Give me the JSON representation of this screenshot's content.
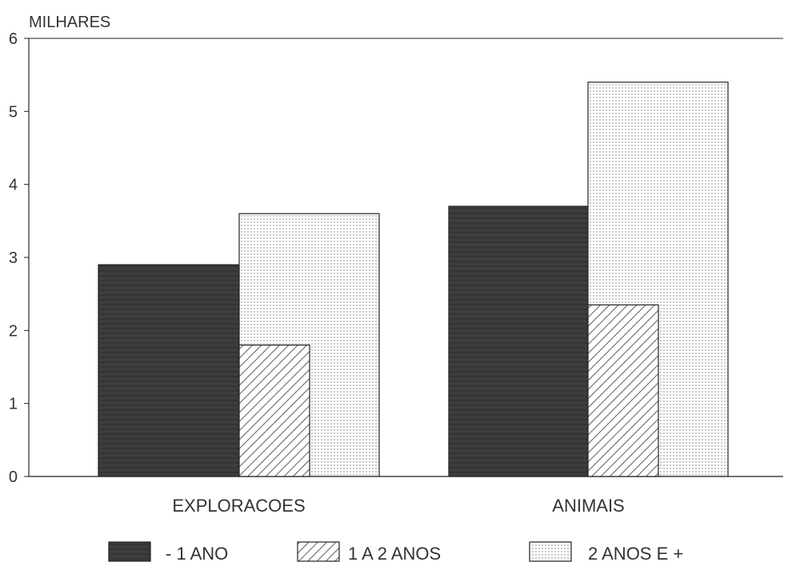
{
  "chart_data": {
    "type": "bar",
    "title": "",
    "ylabel": "MILHARES",
    "xlabel": "",
    "categories": [
      "EXPLORACOES",
      "ANIMAIS"
    ],
    "series": [
      {
        "name": "- 1 ANO",
        "values": [
          2.9,
          3.7
        ],
        "fill": "dark"
      },
      {
        "name": "1 A 2 ANOS",
        "values": [
          1.8,
          2.35
        ],
        "fill": "hatch"
      },
      {
        "name": "2 ANOS E +",
        "values": [
          3.6,
          5.4
        ],
        "fill": "dots"
      }
    ],
    "ylim": [
      0,
      6
    ],
    "yticks": [
      "0",
      "1",
      "2",
      "3",
      "4",
      "5",
      "6"
    ],
    "grid": false,
    "legend_position": "bottom",
    "colors": {
      "dark": "#3d3d3d",
      "line": "#222222",
      "text": "#333333"
    }
  }
}
